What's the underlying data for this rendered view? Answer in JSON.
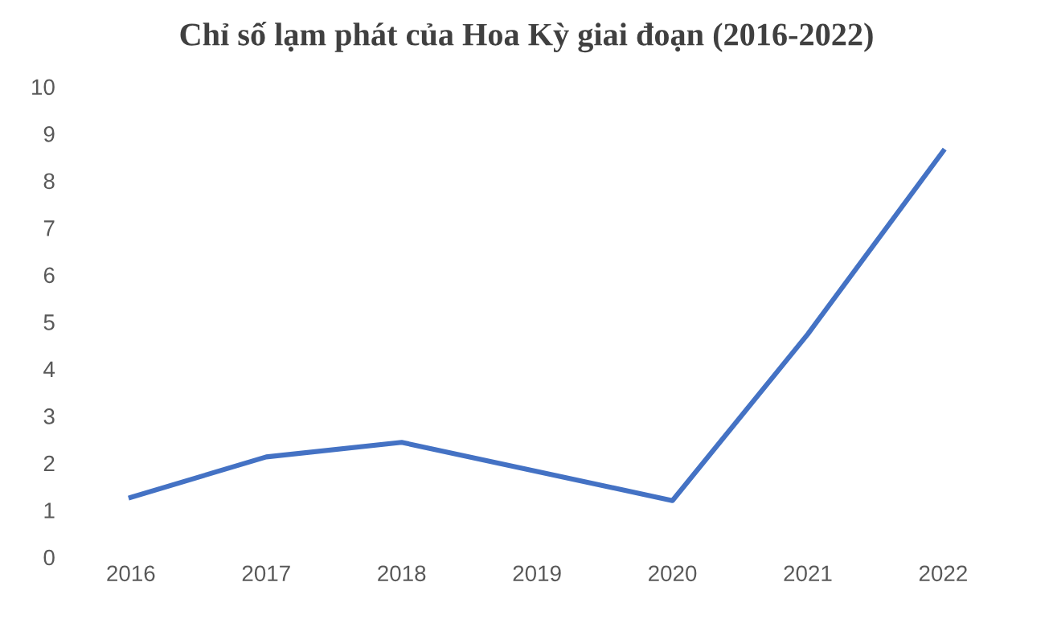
{
  "chart_data": {
    "type": "line",
    "title": "Chỉ số lạm phát của Hoa Kỳ giai đoạn (2016-2022)",
    "categories": [
      "2016",
      "2017",
      "2018",
      "2019",
      "2020",
      "2021",
      "2022"
    ],
    "series": [
      {
        "color": "#4472c4",
        "values": [
          1.27,
          2.13,
          2.44,
          1.82,
          1.2,
          4.74,
          8.63
        ]
      }
    ],
    "ylim": [
      0,
      10
    ],
    "yticks": [
      0,
      1,
      2,
      3,
      4,
      5,
      6,
      7,
      8,
      9,
      10
    ],
    "grid": false,
    "legend": false,
    "marker": "none",
    "line_style": "solid"
  }
}
